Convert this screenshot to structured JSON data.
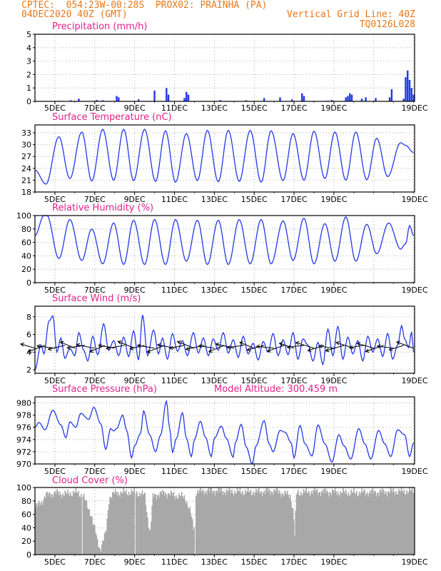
{
  "header": {
    "line1": "CPTEC:  054:23W-00:28S  PROX02: PRAINHA (PA)",
    "line2_left": "04DEC2020 40Z (GMT)",
    "line2_right": "Vertical Grid Line: 40Z",
    "code": "TQ0126L028"
  },
  "colors": {
    "header": "#e87818",
    "title": "#e0208a",
    "series": "#2438e6",
    "cloud": "#a8a8a8",
    "grid": "#9a9a9a",
    "wind_vectors": "#000000"
  },
  "chart_data": [
    {
      "type": "bar",
      "title": "Precipitation (mm/h)",
      "x_tick_labels": [
        "5DEC",
        "7DEC",
        "9DEC",
        "11DEC",
        "13DEC",
        "15DEC",
        "17DEC",
        "19DEC"
      ],
      "ylim": [
        0,
        5
      ],
      "yticks": [
        0,
        1,
        2,
        3,
        4,
        5
      ],
      "grid": true,
      "notes_values": "bars as [day_offset, mm/h]; day_offset 0 = start of axis",
      "points": [
        [
          1.2,
          0.05
        ],
        [
          1.8,
          0.08
        ],
        [
          2.2,
          0.2
        ],
        [
          3.1,
          0.1
        ],
        [
          3.4,
          0.08
        ],
        [
          4.1,
          0.4
        ],
        [
          4.2,
          0.3
        ],
        [
          5.2,
          0.15
        ],
        [
          6.0,
          0.8
        ],
        [
          6.6,
          1.0
        ],
        [
          6.7,
          0.5
        ],
        [
          7.5,
          0.25
        ],
        [
          7.6,
          0.7
        ],
        [
          7.7,
          0.5
        ],
        [
          9.3,
          0.1
        ],
        [
          10.6,
          0.08
        ],
        [
          11.5,
          0.25
        ],
        [
          12.3,
          0.3
        ],
        [
          12.9,
          0.15
        ],
        [
          13.4,
          0.6
        ],
        [
          13.5,
          0.4
        ],
        [
          14.7,
          0.05
        ],
        [
          14.9,
          0.1
        ],
        [
          15.6,
          0.3
        ],
        [
          15.7,
          0.4
        ],
        [
          15.8,
          0.6
        ],
        [
          15.9,
          0.5
        ],
        [
          16.4,
          0.2
        ],
        [
          16.6,
          0.3
        ],
        [
          17.1,
          0.25
        ],
        [
          17.8,
          0.3
        ],
        [
          17.9,
          0.9
        ],
        [
          18.5,
          0.2
        ],
        [
          18.6,
          1.8
        ],
        [
          18.7,
          2.3
        ],
        [
          18.8,
          1.6
        ],
        [
          18.9,
          1.0
        ],
        [
          19.0,
          0.5
        ]
      ]
    },
    {
      "type": "line",
      "title": "Surface Temperature (nC)",
      "x_tick_labels": [
        "5DEC",
        "7DEC",
        "9DEC",
        "11DEC",
        "13DEC",
        "15DEC",
        "17DEC",
        "19DEC"
      ],
      "ylim": [
        18,
        35
      ],
      "yticks": [
        18,
        21,
        24,
        27,
        30,
        33
      ],
      "grid": true,
      "start_value": 23.5,
      "extrema": [
        [
          0.55,
          20.0
        ],
        [
          1.2,
          32.0
        ],
        [
          1.75,
          21.4
        ],
        [
          2.35,
          33.2
        ],
        [
          2.85,
          20.8
        ],
        [
          3.4,
          33.9
        ],
        [
          3.95,
          21.0
        ],
        [
          4.45,
          33.9
        ],
        [
          4.95,
          20.9
        ],
        [
          5.5,
          33.9
        ],
        [
          6.05,
          20.7
        ],
        [
          6.55,
          33.5
        ],
        [
          7.05,
          20.5
        ],
        [
          7.6,
          32.8
        ],
        [
          8.15,
          20.9
        ],
        [
          8.65,
          33.6
        ],
        [
          9.2,
          20.6
        ],
        [
          9.7,
          33.6
        ],
        [
          10.25,
          20.7
        ],
        [
          10.8,
          33.6
        ],
        [
          11.35,
          20.5
        ],
        [
          11.85,
          33.5
        ],
        [
          12.45,
          20.9
        ],
        [
          12.95,
          32.8
        ],
        [
          13.5,
          21.0
        ],
        [
          14.0,
          33.4
        ],
        [
          14.55,
          21.4
        ],
        [
          15.05,
          33.2
        ],
        [
          15.6,
          21.0
        ],
        [
          16.1,
          33.2
        ],
        [
          16.65,
          21.1
        ],
        [
          17.15,
          31.6
        ],
        [
          17.7,
          21.9
        ],
        [
          18.35,
          30.5
        ],
        [
          18.6,
          29.8
        ],
        [
          19.0,
          28.0
        ]
      ]
    },
    {
      "type": "line",
      "title": "Relative Humidity (%)",
      "x_tick_labels": [
        "5DEC",
        "7DEC",
        "9DEC",
        "11DEC",
        "13DEC",
        "15DEC",
        "17DEC",
        "19DEC"
      ],
      "ylim": [
        0,
        100
      ],
      "yticks": [
        0,
        20,
        40,
        60,
        80,
        100
      ],
      "grid": true,
      "start_value": 70,
      "extrema": [
        [
          0.45,
          100
        ],
        [
          0.6,
          100
        ],
        [
          1.2,
          36
        ],
        [
          1.75,
          94
        ],
        [
          2.35,
          33
        ],
        [
          2.85,
          80
        ],
        [
          3.4,
          28
        ],
        [
          3.95,
          89
        ],
        [
          4.45,
          27
        ],
        [
          4.95,
          93
        ],
        [
          5.5,
          27
        ],
        [
          6.0,
          94
        ],
        [
          6.55,
          27
        ],
        [
          7.05,
          94
        ],
        [
          7.6,
          32
        ],
        [
          8.15,
          93
        ],
        [
          8.65,
          27
        ],
        [
          9.2,
          93
        ],
        [
          9.7,
          27
        ],
        [
          10.25,
          94
        ],
        [
          10.8,
          28
        ],
        [
          11.35,
          94
        ],
        [
          11.85,
          28
        ],
        [
          12.45,
          92
        ],
        [
          12.95,
          33
        ],
        [
          13.5,
          96
        ],
        [
          14.0,
          28
        ],
        [
          14.55,
          88
        ],
        [
          15.05,
          32
        ],
        [
          15.6,
          98
        ],
        [
          16.1,
          32
        ],
        [
          16.65,
          87
        ],
        [
          17.15,
          43
        ],
        [
          17.75,
          89
        ],
        [
          18.35,
          50
        ],
        [
          18.6,
          58
        ],
        [
          18.8,
          85
        ],
        [
          19.0,
          70
        ]
      ]
    },
    {
      "type": "line",
      "title": "Surface Wind (m/s)",
      "x_tick_labels": [
        "5DEC",
        "7DEC",
        "9DEC",
        "11DEC",
        "13DEC",
        "15DEC",
        "17DEC",
        "19DEC"
      ],
      "ylim": [
        1.6,
        9.2
      ],
      "yticks": [
        2,
        4,
        6,
        8
      ],
      "grid": true,
      "start_value": 2.0,
      "extrema": [
        [
          0.3,
          4.8
        ],
        [
          0.45,
          3.8
        ],
        [
          0.7,
          7.5
        ],
        [
          0.9,
          8.1
        ],
        [
          1.1,
          4.0
        ],
        [
          1.3,
          5.6
        ],
        [
          1.5,
          3.3
        ],
        [
          1.75,
          4.4
        ],
        [
          2.0,
          3.6
        ],
        [
          2.2,
          6.2
        ],
        [
          2.45,
          4.2
        ],
        [
          2.65,
          3.0
        ],
        [
          2.9,
          5.8
        ],
        [
          3.15,
          3.7
        ],
        [
          3.45,
          7.2
        ],
        [
          3.7,
          4.2
        ],
        [
          3.95,
          5.3
        ],
        [
          4.2,
          3.6
        ],
        [
          4.45,
          5.7
        ],
        [
          4.7,
          3.5
        ],
        [
          4.95,
          6.4
        ],
        [
          5.2,
          3.1
        ],
        [
          5.4,
          8.2
        ],
        [
          5.65,
          3.6
        ],
        [
          5.95,
          6.5
        ],
        [
          6.2,
          3.8
        ],
        [
          6.4,
          5.6
        ],
        [
          6.65,
          3.2
        ],
        [
          6.9,
          6.1
        ],
        [
          7.15,
          4.1
        ],
        [
          7.4,
          5.3
        ],
        [
          7.65,
          3.6
        ],
        [
          7.95,
          6.2
        ],
        [
          8.2,
          3.9
        ],
        [
          8.45,
          5.6
        ],
        [
          8.7,
          3.6
        ],
        [
          8.95,
          5.5
        ],
        [
          9.2,
          4.2
        ],
        [
          9.45,
          6.2
        ],
        [
          9.7,
          3.9
        ],
        [
          9.95,
          5.4
        ],
        [
          10.2,
          3.4
        ],
        [
          10.45,
          5.8
        ],
        [
          10.7,
          3.8
        ],
        [
          10.95,
          5.0
        ],
        [
          11.2,
          3.1
        ],
        [
          11.45,
          5.2
        ],
        [
          11.7,
          4.0
        ],
        [
          11.95,
          6.1
        ],
        [
          12.2,
          3.6
        ],
        [
          12.45,
          5.4
        ],
        [
          12.7,
          3.7
        ],
        [
          12.95,
          6.2
        ],
        [
          13.2,
          3.2
        ],
        [
          13.45,
          5.5
        ],
        [
          13.7,
          4.8
        ],
        [
          13.95,
          3.0
        ],
        [
          14.2,
          5.1
        ],
        [
          14.45,
          2.6
        ],
        [
          14.7,
          6.6
        ],
        [
          14.95,
          3.6
        ],
        [
          15.2,
          6.9
        ],
        [
          15.45,
          3.2
        ],
        [
          15.7,
          5.7
        ],
        [
          15.95,
          3.8
        ],
        [
          16.2,
          5.3
        ],
        [
          16.45,
          3.0
        ],
        [
          16.7,
          5.8
        ],
        [
          16.95,
          4.0
        ],
        [
          17.2,
          5.5
        ],
        [
          17.45,
          3.5
        ],
        [
          17.7,
          6.1
        ],
        [
          17.95,
          3.2
        ],
        [
          18.2,
          4.8
        ],
        [
          18.4,
          7.0
        ],
        [
          18.55,
          5.5
        ],
        [
          18.75,
          4.5
        ],
        [
          18.9,
          6.3
        ],
        [
          19.0,
          4.0
        ]
      ],
      "vector_days": [
        0.0,
        0.5,
        1.0,
        1.5,
        2.0,
        2.5,
        3.0,
        3.5,
        4.0,
        4.5,
        5.0,
        5.5,
        6.0,
        6.5,
        7.0,
        7.5,
        8.0,
        8.5,
        9.0,
        9.5,
        10.0,
        10.5,
        11.0,
        11.5,
        12.0,
        12.5,
        13.0,
        13.5,
        14.0,
        14.5,
        15.0,
        15.5,
        16.0,
        16.5,
        17.0,
        17.5,
        18.0,
        18.5,
        19.0
      ]
    },
    {
      "type": "line",
      "title": "Surface Pressure (hPa)",
      "subtitle": "Model Altitude: 300.459 m",
      "x_tick_labels": [
        "5DEC",
        "7DEC",
        "9DEC",
        "11DEC",
        "13DEC",
        "15DEC",
        "17DEC",
        "19DEC"
      ],
      "ylim": [
        970,
        981
      ],
      "yticks": [
        970,
        972,
        974,
        976,
        978,
        980
      ],
      "grid": true,
      "start_value": 976.0,
      "extrema": [
        [
          0.2,
          976.8
        ],
        [
          0.5,
          975.6
        ],
        [
          0.9,
          978.8
        ],
        [
          1.3,
          976.4
        ],
        [
          1.55,
          974.3
        ],
        [
          1.75,
          976.9
        ],
        [
          2.05,
          976.0
        ],
        [
          2.3,
          978.3
        ],
        [
          2.7,
          977.3
        ],
        [
          2.95,
          979.3
        ],
        [
          3.3,
          976.6
        ],
        [
          3.55,
          972.4
        ],
        [
          3.8,
          975.8
        ],
        [
          3.95,
          975.4
        ],
        [
          4.1,
          975.8
        ],
        [
          4.4,
          978.0
        ],
        [
          4.6,
          975.5
        ],
        [
          4.85,
          971.0
        ],
        [
          5.0,
          973.0
        ],
        [
          5.3,
          975.0
        ],
        [
          5.45,
          978.7
        ],
        [
          5.75,
          974.8
        ],
        [
          6.05,
          972.0
        ],
        [
          6.3,
          974.7
        ],
        [
          6.6,
          980.3
        ],
        [
          6.75,
          976.0
        ],
        [
          6.9,
          971.9
        ],
        [
          7.1,
          974.2
        ],
        [
          7.4,
          978.4
        ],
        [
          7.6,
          974.2
        ],
        [
          7.85,
          971.2
        ],
        [
          8.0,
          974.0
        ],
        [
          8.3,
          977.0
        ],
        [
          8.55,
          974.4
        ],
        [
          8.85,
          971.2
        ],
        [
          9.0,
          974.2
        ],
        [
          9.35,
          976.2
        ],
        [
          9.6,
          974.2
        ],
        [
          9.95,
          971.1
        ],
        [
          10.05,
          973.5
        ],
        [
          10.35,
          976.5
        ],
        [
          10.6,
          972.8
        ],
        [
          10.9,
          970.0
        ],
        [
          11.1,
          973.0
        ],
        [
          11.5,
          977.1
        ],
        [
          11.75,
          973.3
        ],
        [
          11.95,
          972.0
        ],
        [
          12.3,
          975.5
        ],
        [
          12.55,
          975.2
        ],
        [
          12.85,
          973.5
        ],
        [
          13.0,
          971.0
        ],
        [
          13.3,
          976.3
        ],
        [
          13.55,
          973.3
        ],
        [
          13.9,
          971.3
        ],
        [
          14.2,
          976.4
        ],
        [
          14.55,
          973.3
        ],
        [
          14.9,
          970.3
        ],
        [
          15.25,
          974.8
        ],
        [
          15.5,
          973.0
        ],
        [
          15.85,
          970.8
        ],
        [
          16.25,
          975.8
        ],
        [
          16.55,
          973.3
        ],
        [
          16.85,
          970.8
        ],
        [
          17.25,
          975.5
        ],
        [
          17.55,
          973.3
        ],
        [
          17.85,
          971.2
        ],
        [
          18.2,
          975.6
        ],
        [
          18.55,
          974.8
        ],
        [
          18.8,
          971.2
        ],
        [
          19.0,
          973.5
        ]
      ]
    },
    {
      "type": "area",
      "title": "Cloud Cover (%)",
      "x_tick_labels": [
        "5DEC",
        "7DEC",
        "9DEC",
        "11DEC",
        "13DEC",
        "15DEC",
        "17DEC",
        "19DEC"
      ],
      "ylim": [
        0,
        100
      ],
      "yticks": [
        0,
        20,
        40,
        60,
        80,
        100
      ],
      "grid": true,
      "profile": [
        [
          0.0,
          70
        ],
        [
          0.3,
          78
        ],
        [
          0.5,
          88
        ],
        [
          1.0,
          92
        ],
        [
          1.5,
          90
        ],
        [
          2.0,
          93
        ],
        [
          2.4,
          88
        ],
        [
          2.6,
          72
        ],
        [
          2.8,
          60
        ],
        [
          2.9,
          45
        ],
        [
          3.0,
          35
        ],
        [
          3.1,
          20
        ],
        [
          3.25,
          8
        ],
        [
          3.4,
          20
        ],
        [
          3.55,
          35
        ],
        [
          3.7,
          85
        ],
        [
          4.0,
          92
        ],
        [
          5.0,
          93
        ],
        [
          5.5,
          88
        ],
        [
          5.6,
          60
        ],
        [
          5.75,
          30
        ],
        [
          5.9,
          88
        ],
        [
          6.5,
          92
        ],
        [
          7.0,
          88
        ],
        [
          7.5,
          86
        ],
        [
          7.8,
          60
        ],
        [
          7.95,
          35
        ],
        [
          8.05,
          93
        ],
        [
          8.5,
          95
        ],
        [
          9.0,
          95
        ],
        [
          10.0,
          94
        ],
        [
          11.0,
          93
        ],
        [
          12.0,
          95
        ],
        [
          12.8,
          88
        ],
        [
          12.95,
          60
        ],
        [
          13.0,
          25
        ],
        [
          13.1,
          92
        ],
        [
          14.0,
          94
        ],
        [
          15.0,
          93
        ],
        [
          16.0,
          92
        ],
        [
          17.0,
          93
        ],
        [
          18.0,
          94
        ],
        [
          19.0,
          95
        ]
      ],
      "gaps": [
        2.35,
        5.0,
        8.0
      ]
    }
  ]
}
